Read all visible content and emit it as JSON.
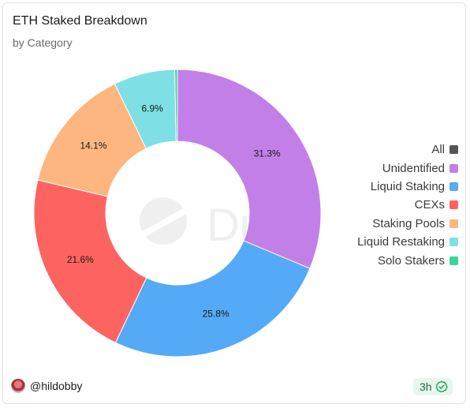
{
  "header": {
    "title": "ETH Staked Breakdown",
    "subtitle": "by Category"
  },
  "footer": {
    "user": "@hildobby",
    "age": "3h",
    "avatar_icon": "avatar-icon",
    "status_icon": "check-circle-icon"
  },
  "watermark": {
    "text": "Dune",
    "icon": "dune-logo-icon"
  },
  "legend": {
    "all_label": "All",
    "all_color": "#555555"
  },
  "chart_data": {
    "type": "pie",
    "donut": true,
    "title": "ETH Staked Breakdown",
    "subtitle": "by Category",
    "legend_position": "right",
    "slices": [
      {
        "name": "Unidentified",
        "value": 31.3,
        "label": "31.3%",
        "color": "#c27fe8"
      },
      {
        "name": "Liquid Staking",
        "value": 25.8,
        "label": "25.8%",
        "color": "#54aaf6"
      },
      {
        "name": "CEXs",
        "value": 21.6,
        "label": "21.6%",
        "color": "#fd6460"
      },
      {
        "name": "Staking Pools",
        "value": 14.1,
        "label": "14.1%",
        "color": "#fdb67f"
      },
      {
        "name": "Liquid Restaking",
        "value": 6.9,
        "label": "6.9%",
        "color": "#7ee0e4"
      },
      {
        "name": "Solo Stakers",
        "value": 0.3,
        "label": "",
        "color": "#3fd39b"
      }
    ]
  }
}
